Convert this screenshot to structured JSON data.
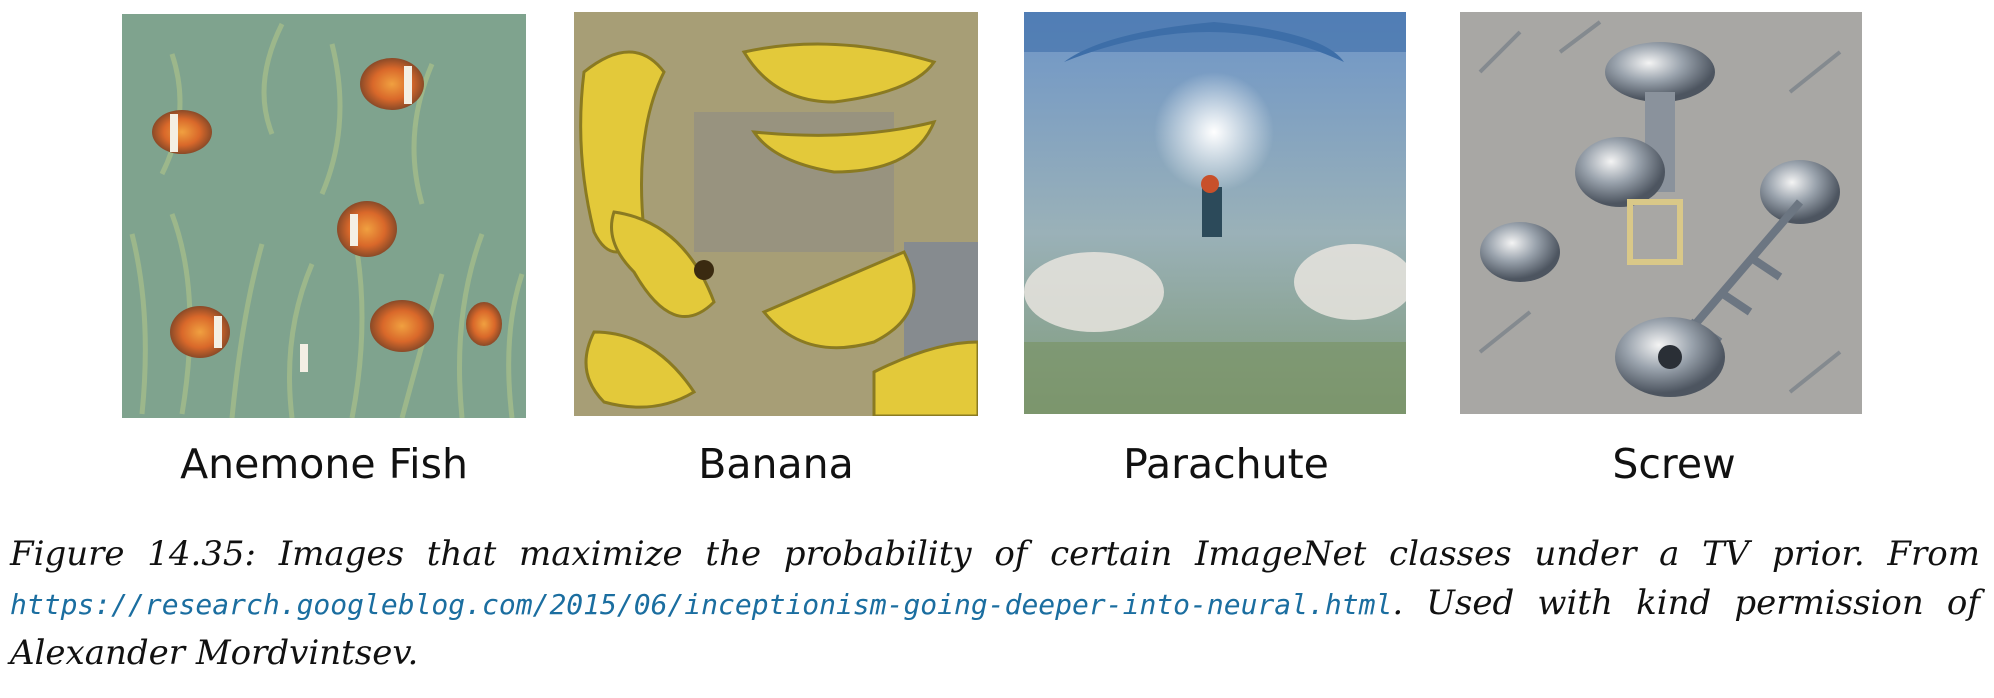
{
  "panels": [
    {
      "label": "Anemone Fish",
      "base_color": "#7fa38e",
      "accent_color": "#d9682a",
      "image_subject": "anemone-fish"
    },
    {
      "label": "Banana",
      "base_color": "#a79e76",
      "accent_color": "#e3c93a",
      "image_subject": "banana"
    },
    {
      "label": "Parachute",
      "base_color": "#8ea8b8",
      "accent_color": "#f2f2f0",
      "image_subject": "parachute"
    },
    {
      "label": "Screw",
      "base_color": "#a8a7a4",
      "accent_color": "#6c7682",
      "image_subject": "screw"
    }
  ],
  "caption": {
    "prefix": "Figure 14.35: Images that maximize the probability of certain ImageNet classes under a TV prior. From",
    "url": "https://research.googleblog.com/2015/06/inceptionism-going-deeper-into-neural.html",
    "suffix": ". Used with kind permission of Alexander Mordvintsev."
  },
  "colors": {
    "link": "#1b6ea0",
    "text": "#111111"
  }
}
